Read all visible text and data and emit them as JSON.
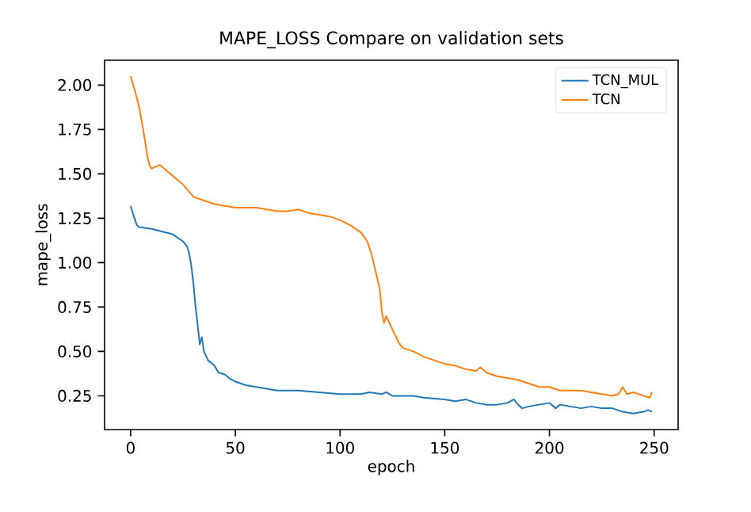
{
  "chart_data": {
    "type": "line",
    "title": "MAPE_LOSS Compare on validation sets",
    "xlabel": "epoch",
    "ylabel": "mape_loss",
    "xlim": [
      -12.45,
      261.45
    ],
    "ylim": [
      0.06,
      2.14
    ],
    "xticks": [
      0,
      50,
      100,
      150,
      200,
      250
    ],
    "yticks": [
      0.25,
      {
        "value": 0.5,
        "label": "0.50"
      },
      0.75,
      {
        "value": 1,
        "label": "1.00"
      },
      1.25,
      {
        "value": 1.5,
        "label": "1.50"
      },
      1.75,
      {
        "value": 2,
        "label": "2.00"
      }
    ],
    "grid": false,
    "legend": "top right",
    "marker": "none",
    "line_style": "solid",
    "series": [
      {
        "name": "TCN_MUL",
        "color": "#1f77b4",
        "x": [
          0,
          1,
          3,
          4,
          10,
          20,
          25,
          27,
          28,
          29,
          30,
          31,
          32,
          33,
          34,
          35,
          37,
          40,
          42,
          45,
          47,
          50,
          55,
          60,
          70,
          80,
          90,
          100,
          110,
          114,
          120,
          122,
          125,
          130,
          135,
          140,
          150,
          155,
          160,
          165,
          170,
          175,
          180,
          183,
          185,
          187,
          190,
          195,
          200,
          203,
          205,
          210,
          215,
          220,
          225,
          230,
          235,
          240,
          245,
          247,
          249
        ],
        "values": [
          1.32,
          1.28,
          1.21,
          1.2,
          1.19,
          1.16,
          1.12,
          1.09,
          1.05,
          0.98,
          0.88,
          0.75,
          0.65,
          0.54,
          0.58,
          0.5,
          0.45,
          0.42,
          0.38,
          0.37,
          0.35,
          0.33,
          0.31,
          0.3,
          0.28,
          0.28,
          0.27,
          0.26,
          0.26,
          0.27,
          0.26,
          0.27,
          0.25,
          0.25,
          0.25,
          0.24,
          0.23,
          0.22,
          0.23,
          0.21,
          0.2,
          0.2,
          0.21,
          0.23,
          0.2,
          0.18,
          0.19,
          0.2,
          0.21,
          0.18,
          0.2,
          0.19,
          0.18,
          0.19,
          0.18,
          0.18,
          0.16,
          0.15,
          0.16,
          0.17,
          0.16
        ]
      },
      {
        "name": "TCN",
        "color": "#ff7f0e",
        "x": [
          0,
          2,
          4,
          6,
          8,
          9,
          10,
          12,
          14,
          16,
          20,
          25,
          28,
          30,
          35,
          40,
          45,
          50,
          55,
          60,
          65,
          70,
          75,
          80,
          85,
          90,
          95,
          100,
          105,
          110,
          113,
          115,
          117,
          119,
          120,
          121,
          122,
          124,
          126,
          128,
          130,
          135,
          140,
          145,
          150,
          155,
          160,
          165,
          167,
          170,
          175,
          180,
          185,
          190,
          195,
          200,
          205,
          210,
          215,
          220,
          225,
          230,
          233,
          235,
          237,
          240,
          245,
          248,
          249
        ],
        "values": [
          2.05,
          1.97,
          1.88,
          1.75,
          1.6,
          1.55,
          1.53,
          1.54,
          1.55,
          1.53,
          1.49,
          1.44,
          1.4,
          1.37,
          1.35,
          1.33,
          1.32,
          1.31,
          1.31,
          1.31,
          1.3,
          1.29,
          1.29,
          1.3,
          1.28,
          1.27,
          1.26,
          1.24,
          1.21,
          1.17,
          1.12,
          1.05,
          0.95,
          0.85,
          0.72,
          0.66,
          0.7,
          0.65,
          0.6,
          0.55,
          0.52,
          0.5,
          0.47,
          0.45,
          0.43,
          0.42,
          0.4,
          0.39,
          0.41,
          0.38,
          0.36,
          0.35,
          0.34,
          0.32,
          0.3,
          0.3,
          0.28,
          0.28,
          0.28,
          0.27,
          0.26,
          0.25,
          0.26,
          0.3,
          0.26,
          0.27,
          0.25,
          0.24,
          0.27
        ]
      }
    ]
  }
}
